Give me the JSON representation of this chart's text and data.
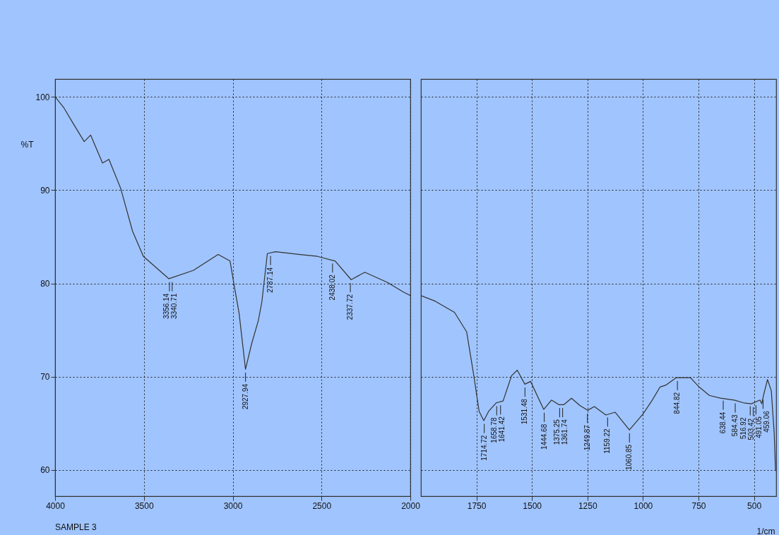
{
  "chart_data": [
    {
      "type": "line",
      "ylabel": "%T",
      "x": [
        4000,
        3950,
        3900,
        3836,
        3800,
        3733,
        3697,
        3631,
        3564,
        3503,
        3359,
        3221,
        3082,
        3015,
        2992,
        2964,
        2928,
        2894,
        2856,
        2836,
        2805,
        2759,
        2621,
        2523,
        2423,
        2333,
        2256,
        2128,
        2041,
        2000
      ],
      "series": [
        {
          "color": "#333333",
          "values": [
            100,
            98.8,
            97.2,
            95.2,
            95.9,
            92.9,
            93.3,
            90.2,
            85.6,
            82.9,
            80.5,
            81.4,
            83.1,
            82.4,
            79.8,
            76.8,
            70.8,
            73.5,
            76,
            78,
            83.2,
            83.4,
            83.1,
            82.9,
            82.4,
            80.4,
            81.2,
            80.1,
            79.1,
            78.7
          ]
        }
      ],
      "xlim": [
        4000,
        2000
      ],
      "xticks": [
        4000,
        3500,
        3000,
        2500,
        2000
      ],
      "ylim": [
        57.2,
        101.9
      ],
      "yticks": [
        60,
        70,
        80,
        90,
        100
      ],
      "grid": true,
      "annotations": [
        "SAMPLE 3",
        {
          "text": "3356.14",
          "x": 3356.14,
          "y": 80.5
        },
        {
          "text": "3340.71",
          "x": 3340.71,
          "y": 80.5
        },
        {
          "text": "2927.94",
          "x": 2927.94,
          "y": 70.8
        },
        {
          "text": "2787.14",
          "x": 2787.14,
          "y": 83.3
        },
        {
          "text": "2438.02",
          "x": 2438.02,
          "y": 82.5
        },
        {
          "text": "2337.72",
          "x": 2337.72,
          "y": 80.4
        }
      ]
    },
    {
      "type": "line",
      "xlabel": "1/cm",
      "x": [
        2000,
        1936,
        1849,
        1794,
        1763,
        1738,
        1717,
        1695,
        1661,
        1630,
        1592,
        1566,
        1532,
        1506,
        1473,
        1447,
        1412,
        1378,
        1357,
        1322,
        1283,
        1249,
        1219,
        1167,
        1125,
        1061,
        1000,
        958,
        923,
        897,
        850,
        786,
        747,
        701,
        650,
        589,
        546,
        512,
        473,
        465,
        457,
        439,
        422,
        409,
        403
      ],
      "series": [
        {
          "color": "#333333",
          "values": [
            78.7,
            78.1,
            76.9,
            74.8,
            70.3,
            66.3,
            65.3,
            66.3,
            67.2,
            67.4,
            70.1,
            70.7,
            69.2,
            69.5,
            67.8,
            66.5,
            67.5,
            67,
            67,
            67.7,
            66.9,
            66.4,
            66.8,
            65.9,
            66.2,
            64.3,
            66,
            67.5,
            68.9,
            69.1,
            69.9,
            69.9,
            68.9,
            68,
            67.7,
            67.5,
            67.2,
            67.1,
            67.5,
            67.1,
            68,
            69.7,
            68.5,
            64,
            59.9
          ]
        }
      ],
      "xlim": [
        2000,
        400
      ],
      "xticks": [
        1750,
        1500,
        1250,
        1000,
        750,
        500
      ],
      "ylim": [
        57.2,
        101.9
      ],
      "yticks": [
        60,
        70,
        80,
        90,
        100
      ],
      "grid": true,
      "tick_labels": "x",
      "annotations": [
        {
          "text": "1714.72",
          "x": 1714.72,
          "y": 65.3
        },
        {
          "text": "1658.78",
          "x": 1658.78,
          "y": 67.2
        },
        {
          "text": "1641.42",
          "x": 1641.42,
          "y": 67.3
        },
        {
          "text": "1531.48",
          "x": 1531.48,
          "y": 69.2
        },
        {
          "text": "1444.68",
          "x": 1444.68,
          "y": 66.5
        },
        {
          "text": "1375.25",
          "x": 1375.25,
          "y": 67
        },
        {
          "text": "1361.74",
          "x": 1361.74,
          "y": 67
        },
        {
          "text": "1249.87",
          "x": 1249.87,
          "y": 66.4
        },
        {
          "text": "1159.22",
          "x": 1159.22,
          "y": 66
        },
        {
          "text": "1060.85",
          "x": 1060.85,
          "y": 64.3
        },
        {
          "text": "844.82",
          "x": 844.82,
          "y": 69.9
        },
        {
          "text": "638.44",
          "x": 638.44,
          "y": 67.8
        },
        {
          "text": "584.43",
          "x": 584.43,
          "y": 67.5
        },
        {
          "text": "516.92",
          "x": 516.92,
          "y": 67.2
        },
        {
          "text": "503.42",
          "x": 503.42,
          "y": 67.1
        },
        {
          "text": "491.05",
          "x": 491.05,
          "y": 67.3
        },
        {
          "text": "459.06",
          "x": 459.06,
          "y": 67.9
        }
      ]
    }
  ]
}
